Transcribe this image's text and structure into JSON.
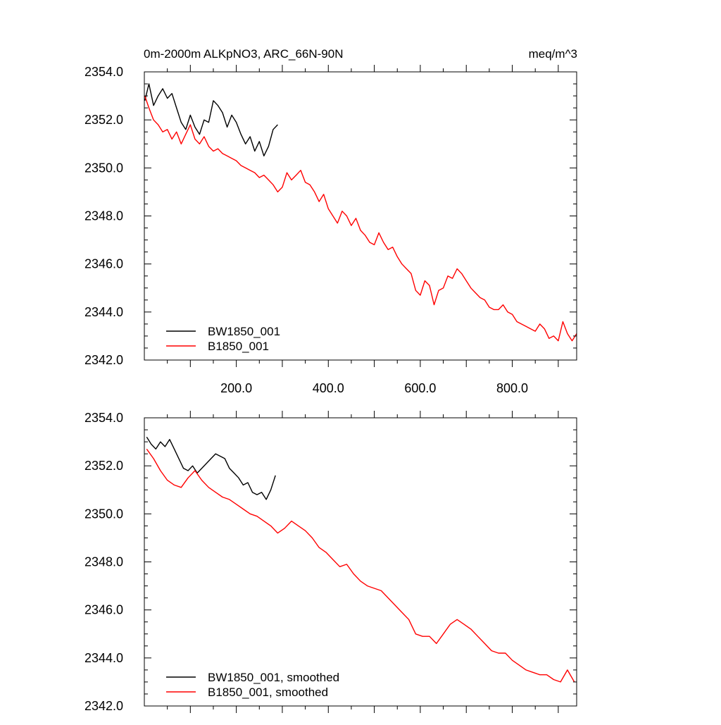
{
  "figure": {
    "title_left": "0m-2000m ALKpNO3, ARC_66N-90N",
    "title_right": "meq/m^3"
  },
  "chart_data": [
    {
      "type": "line",
      "panel": "top",
      "xlim": [
        0,
        940
      ],
      "ylim": [
        2342.0,
        2354.0
      ],
      "x_ticks": [
        200,
        400,
        600,
        800
      ],
      "x_tick_labels": [
        "200.0",
        "400.0",
        "600.0",
        "800.0"
      ],
      "y_ticks": [
        2342,
        2344,
        2346,
        2348,
        2350,
        2352,
        2354
      ],
      "y_tick_labels": [
        "2342.0",
        "2344.0",
        "2346.0",
        "2348.0",
        "2350.0",
        "2352.0",
        "2354.0"
      ],
      "legend_position": "bottom-left",
      "series": [
        {
          "name": "BW1850_001",
          "color": "#000000",
          "x": [
            1,
            10,
            20,
            30,
            40,
            50,
            60,
            70,
            80,
            90,
            100,
            110,
            120,
            130,
            140,
            150,
            160,
            170,
            180,
            190,
            200,
            210,
            220,
            230,
            240,
            250,
            260,
            270,
            280,
            290
          ],
          "values": [
            2352.8,
            2353.5,
            2352.6,
            2353.0,
            2353.3,
            2352.9,
            2353.1,
            2352.5,
            2351.9,
            2351.6,
            2352.2,
            2351.7,
            2351.4,
            2352.0,
            2351.9,
            2352.8,
            2352.6,
            2352.3,
            2351.7,
            2352.2,
            2351.9,
            2351.4,
            2351.0,
            2351.3,
            2350.7,
            2351.1,
            2350.5,
            2350.9,
            2351.6,
            2351.8
          ]
        },
        {
          "name": "B1850_001",
          "color": "#ff0000",
          "x": [
            1,
            10,
            20,
            30,
            40,
            50,
            60,
            70,
            80,
            90,
            100,
            110,
            120,
            130,
            140,
            150,
            160,
            170,
            180,
            190,
            200,
            210,
            220,
            230,
            240,
            250,
            260,
            270,
            280,
            290,
            300,
            310,
            320,
            330,
            340,
            350,
            360,
            370,
            380,
            390,
            400,
            410,
            420,
            430,
            440,
            450,
            460,
            470,
            480,
            490,
            500,
            510,
            520,
            530,
            540,
            550,
            560,
            570,
            580,
            590,
            600,
            610,
            620,
            630,
            640,
            650,
            660,
            670,
            680,
            690,
            700,
            710,
            720,
            730,
            740,
            750,
            760,
            770,
            780,
            790,
            800,
            810,
            820,
            830,
            840,
            850,
            860,
            870,
            880,
            890,
            900,
            910,
            920,
            930,
            940
          ],
          "values": [
            2353.0,
            2352.5,
            2352.0,
            2351.8,
            2351.5,
            2351.6,
            2351.2,
            2351.5,
            2351.0,
            2351.4,
            2351.8,
            2351.2,
            2351.0,
            2351.3,
            2350.9,
            2350.7,
            2350.8,
            2350.6,
            2350.5,
            2350.4,
            2350.3,
            2350.1,
            2350.0,
            2349.9,
            2349.8,
            2349.6,
            2349.7,
            2349.5,
            2349.3,
            2349.0,
            2349.2,
            2349.8,
            2349.5,
            2349.7,
            2349.9,
            2349.4,
            2349.3,
            2349.0,
            2348.6,
            2348.9,
            2348.3,
            2348.0,
            2347.7,
            2348.2,
            2348.0,
            2347.6,
            2347.9,
            2347.4,
            2347.2,
            2346.9,
            2346.8,
            2347.3,
            2346.9,
            2346.6,
            2346.7,
            2346.3,
            2346.0,
            2345.8,
            2345.6,
            2344.9,
            2344.7,
            2345.3,
            2345.1,
            2344.3,
            2344.9,
            2345.0,
            2345.5,
            2345.4,
            2345.8,
            2345.6,
            2345.3,
            2345.0,
            2344.8,
            2344.6,
            2344.5,
            2344.2,
            2344.1,
            2344.1,
            2344.3,
            2344.0,
            2343.9,
            2343.6,
            2343.5,
            2343.4,
            2343.3,
            2343.2,
            2343.5,
            2343.3,
            2342.9,
            2343.0,
            2342.8,
            2343.6,
            2343.1,
            2342.8,
            2343.1
          ]
        }
      ]
    },
    {
      "type": "line",
      "panel": "bottom",
      "xlim": [
        0,
        940
      ],
      "ylim": [
        2342.0,
        2354.0
      ],
      "y_ticks": [
        2342,
        2344,
        2346,
        2348,
        2350,
        2352,
        2354
      ],
      "y_tick_labels": [
        "2342.0",
        "2344.0",
        "2346.0",
        "2348.0",
        "2350.0",
        "2352.0",
        "2354.0"
      ],
      "legend_position": "bottom-left",
      "series": [
        {
          "name": "BW1850_001, smoothed",
          "color": "#000000",
          "x": [
            5,
            15,
            25,
            35,
            45,
            55,
            65,
            75,
            85,
            95,
            105,
            115,
            125,
            135,
            145,
            155,
            165,
            175,
            185,
            195,
            205,
            215,
            225,
            235,
            245,
            255,
            265,
            275,
            285
          ],
          "values": [
            2353.2,
            2352.9,
            2352.7,
            2353.0,
            2352.8,
            2353.1,
            2352.7,
            2352.3,
            2351.9,
            2351.8,
            2352.0,
            2351.7,
            2351.9,
            2352.1,
            2352.3,
            2352.5,
            2352.4,
            2352.3,
            2351.9,
            2351.7,
            2351.5,
            2351.2,
            2351.3,
            2350.9,
            2350.8,
            2350.9,
            2350.6,
            2351.0,
            2351.6
          ]
        },
        {
          "name": "B1850_001, smoothed",
          "color": "#ff0000",
          "x": [
            5,
            20,
            35,
            50,
            65,
            80,
            95,
            110,
            125,
            140,
            155,
            170,
            185,
            200,
            215,
            230,
            245,
            260,
            275,
            290,
            305,
            320,
            335,
            350,
            365,
            380,
            395,
            410,
            425,
            440,
            455,
            470,
            485,
            500,
            515,
            530,
            545,
            560,
            575,
            590,
            605,
            620,
            635,
            650,
            665,
            680,
            695,
            710,
            725,
            740,
            755,
            770,
            785,
            800,
            815,
            830,
            845,
            860,
            875,
            890,
            905,
            920,
            935
          ],
          "values": [
            2352.7,
            2352.3,
            2351.8,
            2351.4,
            2351.2,
            2351.1,
            2351.5,
            2351.8,
            2351.4,
            2351.1,
            2350.9,
            2350.7,
            2350.6,
            2350.4,
            2350.2,
            2350.0,
            2349.9,
            2349.7,
            2349.5,
            2349.2,
            2349.4,
            2349.7,
            2349.5,
            2349.3,
            2349.0,
            2348.6,
            2348.4,
            2348.1,
            2347.8,
            2347.9,
            2347.5,
            2347.2,
            2347.0,
            2346.9,
            2346.8,
            2346.5,
            2346.2,
            2345.9,
            2345.6,
            2345.0,
            2344.9,
            2344.9,
            2344.6,
            2345.0,
            2345.4,
            2345.6,
            2345.4,
            2345.2,
            2344.9,
            2344.6,
            2344.3,
            2344.2,
            2344.2,
            2343.9,
            2343.7,
            2343.5,
            2343.4,
            2343.3,
            2343.3,
            2343.1,
            2343.0,
            2343.5,
            2343.0
          ]
        }
      ]
    }
  ]
}
